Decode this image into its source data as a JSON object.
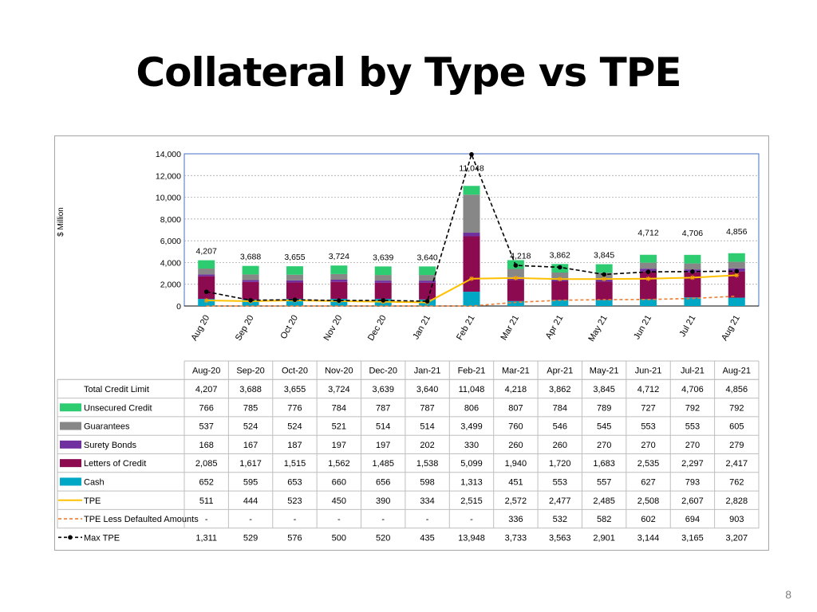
{
  "title": "Collateral by Type vs TPE",
  "page_number": "8",
  "chart_data": {
    "type": "bar",
    "stacked": true,
    "ylabel": "$ Million",
    "ylim": [
      0,
      14000
    ],
    "yticks": [
      "0",
      "2,000",
      "4,000",
      "6,000",
      "8,000",
      "10,000",
      "12,000",
      "14,000"
    ],
    "ytick_values": [
      0,
      2000,
      4000,
      6000,
      8000,
      10000,
      12000,
      14000
    ],
    "grid": true,
    "categories": [
      "Aug-20",
      "Sep-20",
      "Oct-20",
      "Nov-20",
      "Dec-20",
      "Jan-21",
      "Feb-21",
      "Mar-21",
      "Apr-21",
      "May-21",
      "Jun-21",
      "Jul-21",
      "Aug-21"
    ],
    "axis_labels": [
      "Aug 20",
      "Sep 20",
      "Oct 20",
      "Nov 20",
      "Dec 20",
      "Jan 21",
      "Feb 21",
      "Mar 21",
      "Apr 21",
      "May 21",
      "Jun 21",
      "Jul 21",
      "Aug 21"
    ],
    "totals": {
      "name": "Total Credit Limit",
      "values": [
        4207,
        3688,
        3655,
        3724,
        3639,
        3640,
        11048,
        4218,
        3862,
        3845,
        4712,
        4706,
        4856
      ],
      "labels": [
        "4,207",
        "3,688",
        "3,655",
        "3,724",
        "3,639",
        "3,640",
        "11,048",
        "4,218",
        "3,862",
        "3,845",
        "4,712",
        "4,706",
        "4,856"
      ]
    },
    "series": [
      {
        "name": "Unsecured Credit",
        "kind": "bar",
        "color": "#2ecc71",
        "values": [
          766,
          785,
          776,
          784,
          787,
          787,
          806,
          807,
          784,
          789,
          727,
          792,
          792
        ],
        "labels": [
          "766",
          "785",
          "776",
          "784",
          "787",
          "787",
          "806",
          "807",
          "784",
          "789",
          "727",
          "792",
          "792"
        ]
      },
      {
        "name": "Guarantees",
        "kind": "bar",
        "color": "#878787",
        "values": [
          537,
          524,
          524,
          521,
          514,
          514,
          3499,
          760,
          546,
          545,
          553,
          553,
          605
        ],
        "labels": [
          "537",
          "524",
          "524",
          "521",
          "514",
          "514",
          "3,499",
          "760",
          "546",
          "545",
          "553",
          "553",
          "605"
        ]
      },
      {
        "name": "Surety Bonds",
        "kind": "bar",
        "color": "#7030a0",
        "values": [
          168,
          167,
          187,
          197,
          197,
          202,
          330,
          260,
          260,
          270,
          270,
          270,
          279
        ],
        "labels": [
          "168",
          "167",
          "187",
          "197",
          "197",
          "202",
          "330",
          "260",
          "260",
          "270",
          "270",
          "270",
          "279"
        ]
      },
      {
        "name": "Letters of Credit",
        "kind": "bar",
        "color": "#8b0a50",
        "values": [
          2085,
          1617,
          1515,
          1562,
          1485,
          1538,
          5099,
          1940,
          1720,
          1683,
          2535,
          2297,
          2417
        ],
        "labels": [
          "2,085",
          "1,617",
          "1,515",
          "1,562",
          "1,485",
          "1,538",
          "5,099",
          "1,940",
          "1,720",
          "1,683",
          "2,535",
          "2,297",
          "2,417"
        ]
      },
      {
        "name": "Cash",
        "kind": "bar",
        "color": "#00a8c6",
        "values": [
          652,
          595,
          653,
          660,
          656,
          598,
          1313,
          451,
          553,
          557,
          627,
          793,
          762
        ],
        "labels": [
          "652",
          "595",
          "653",
          "660",
          "656",
          "598",
          "1,313",
          "451",
          "553",
          "557",
          "627",
          "793",
          "762"
        ]
      },
      {
        "name": "TPE",
        "kind": "line",
        "color": "#ffc000",
        "values": [
          511,
          444,
          523,
          450,
          390,
          334,
          2515,
          2572,
          2477,
          2485,
          2508,
          2607,
          2828
        ],
        "labels": [
          "511",
          "444",
          "523",
          "450",
          "390",
          "334",
          "2,515",
          "2,572",
          "2,477",
          "2,485",
          "2,508",
          "2,607",
          "2,828"
        ]
      },
      {
        "name": "TPE Less Defaulted Amounts",
        "kind": "dashed-line",
        "color": "#ed7d31",
        "values": [
          0,
          0,
          0,
          0,
          0,
          0,
          0,
          336,
          532,
          582,
          602,
          694,
          903
        ],
        "labels": [
          "-",
          "-",
          "-",
          "-",
          "-",
          "-",
          "-",
          "336",
          "532",
          "582",
          "602",
          "694",
          "903"
        ]
      },
      {
        "name": "Max TPE",
        "kind": "dashed-line-markers",
        "color": "#000000",
        "values": [
          1311,
          529,
          576,
          500,
          520,
          435,
          13948,
          3733,
          3563,
          2901,
          3144,
          3165,
          3207
        ],
        "labels": [
          "1,311",
          "529",
          "576",
          "500",
          "520",
          "435",
          "13,948",
          "3,733",
          "3,563",
          "2,901",
          "3,144",
          "3,165",
          "3,207"
        ]
      }
    ]
  }
}
